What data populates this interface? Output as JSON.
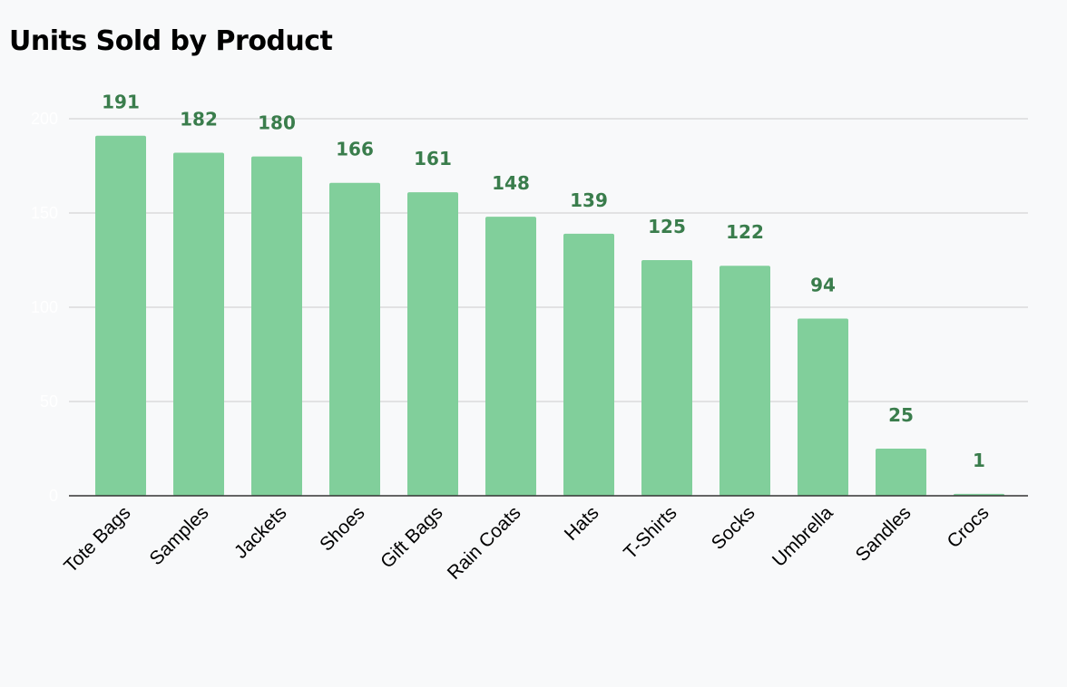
{
  "chart_data": {
    "type": "bar",
    "title": "Units Sold by Product",
    "xlabel": "",
    "ylabel": "",
    "categories": [
      "Tote Bags",
      "Samples",
      "Jackets",
      "Shoes",
      "Gift Bags",
      "Rain Coats",
      "Hats",
      "T-Shirts",
      "Socks",
      "Umbrella",
      "Sandles",
      "Crocs"
    ],
    "values": [
      191,
      182,
      180,
      166,
      161,
      148,
      139,
      125,
      122,
      94,
      25,
      1
    ],
    "ylim": [
      0,
      200
    ],
    "yticks": [
      0,
      50,
      100,
      150,
      200
    ],
    "grid": true,
    "legend": "none",
    "colors": {
      "bar": "#81cf9b",
      "data_label": "#3a7d4c",
      "gridline": "#cccccc",
      "axis": "#333333",
      "y_tick_label": "#ffffff",
      "background": "#f8f9fa"
    }
  }
}
